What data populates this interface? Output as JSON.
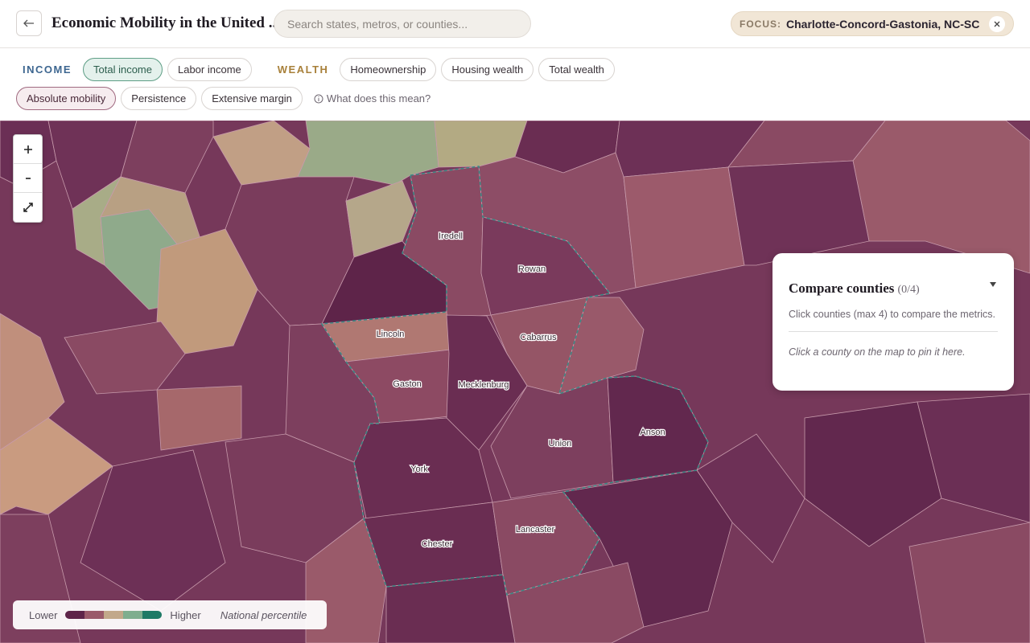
{
  "header": {
    "title": "Economic Mobility in the United ...",
    "search_placeholder": "Search states, metros, or counties...",
    "focus_label": "FOCUS:",
    "focus_value": "Charlotte-Concord-Gastonia, NC-SC"
  },
  "filters": {
    "income_label": "INCOME",
    "income_options": [
      "Total income",
      "Labor income"
    ],
    "wealth_label": "WEALTH",
    "wealth_options": [
      "Homeownership",
      "Housing wealth",
      "Total wealth"
    ],
    "measure_options": [
      "Absolute mobility",
      "Persistence",
      "Extensive margin"
    ],
    "help": "What does this mean?"
  },
  "map": {
    "counties": [
      "Iredell",
      "Rowan",
      "Lincoln",
      "Cabarrus",
      "Gaston",
      "Mecklenburg",
      "Union",
      "Anson",
      "York",
      "Lancaster",
      "Chester"
    ]
  },
  "compare": {
    "title": "Compare counties",
    "count": "(0/4)",
    "description": "Click counties (max 4) to compare the metrics.",
    "hint": "Click a county on the map to pin it here."
  },
  "legend": {
    "low": "Lower",
    "high": "Higher",
    "caption": "National percentile"
  }
}
